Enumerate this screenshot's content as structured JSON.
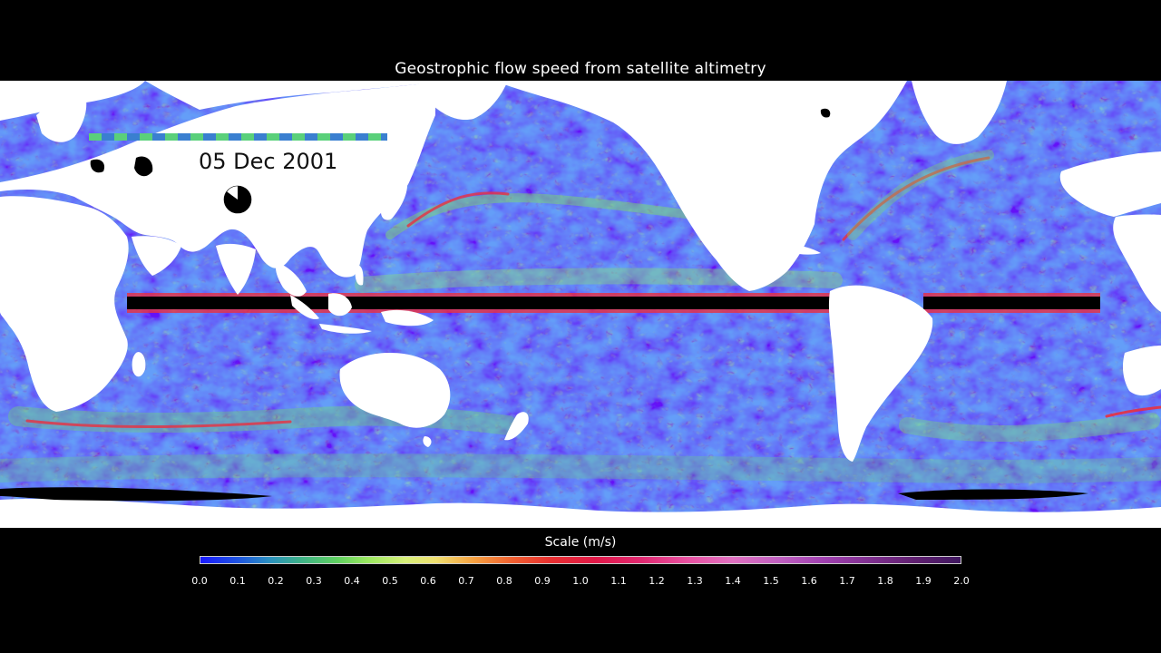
{
  "title": "Geostrophic flow speed from satellite altimetry",
  "date": "05 Dec 2001",
  "scale": {
    "title": "Scale (m/s)",
    "min": 0.0,
    "max": 2.0,
    "ticks": [
      "0.0",
      "0.1",
      "0.2",
      "0.3",
      "0.4",
      "0.5",
      "0.6",
      "0.7",
      "0.8",
      "0.9",
      "1.0",
      "1.1",
      "1.2",
      "1.3",
      "1.4",
      "1.5",
      "1.6",
      "1.7",
      "1.8",
      "1.9",
      "2.0"
    ]
  },
  "colors": {
    "background": "#000000",
    "land": "#ffffff",
    "ocean_low": "#1a1aff",
    "ocean_mid": "#7ee060",
    "ocean_high": "#e81840"
  },
  "icons": {
    "progress_clock": "pie-clock-icon",
    "timeline": "timeline-bar-icon"
  },
  "timeline_progress": 0.85
}
